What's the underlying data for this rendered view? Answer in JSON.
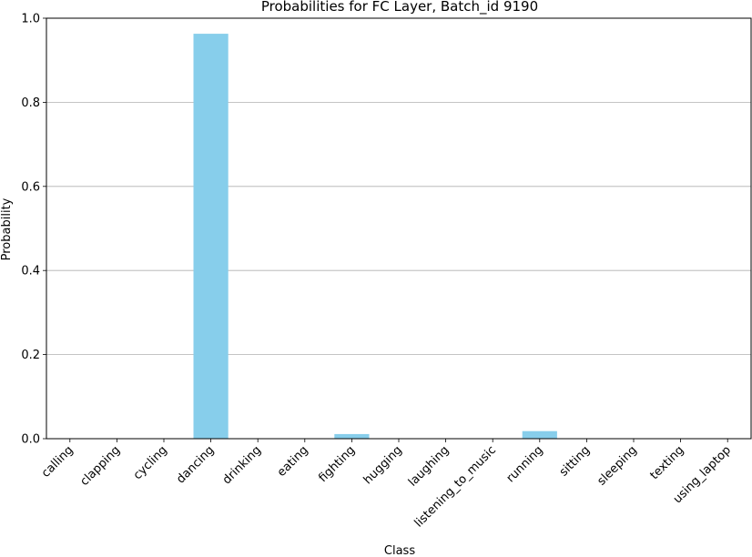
{
  "chart_data": {
    "type": "bar",
    "title": "Probabilities for FC Layer, Batch_id 9190",
    "xlabel": "Class",
    "ylabel": "Probability",
    "categories": [
      "calling",
      "clapping",
      "cycling",
      "dancing",
      "drinking",
      "eating",
      "fighting",
      "hugging",
      "laughing",
      "listening_to_music",
      "running",
      "sitting",
      "sleeping",
      "texting",
      "using_laptop"
    ],
    "values": [
      0.0005,
      0.0005,
      0.0005,
      0.963,
      0.0005,
      0.0005,
      0.011,
      0.0005,
      0.0005,
      0.0005,
      0.018,
      0.0005,
      0.0005,
      0.0005,
      0.0005
    ],
    "ylim": [
      0,
      1.0
    ],
    "yticks": [
      0.0,
      0.2,
      0.4,
      0.6,
      0.8,
      1.0
    ],
    "ytick_labels": [
      "0.0",
      "0.2",
      "0.4",
      "0.6",
      "0.8",
      "1.0"
    ],
    "grid": "y",
    "bar_color": "#87ceeb"
  }
}
